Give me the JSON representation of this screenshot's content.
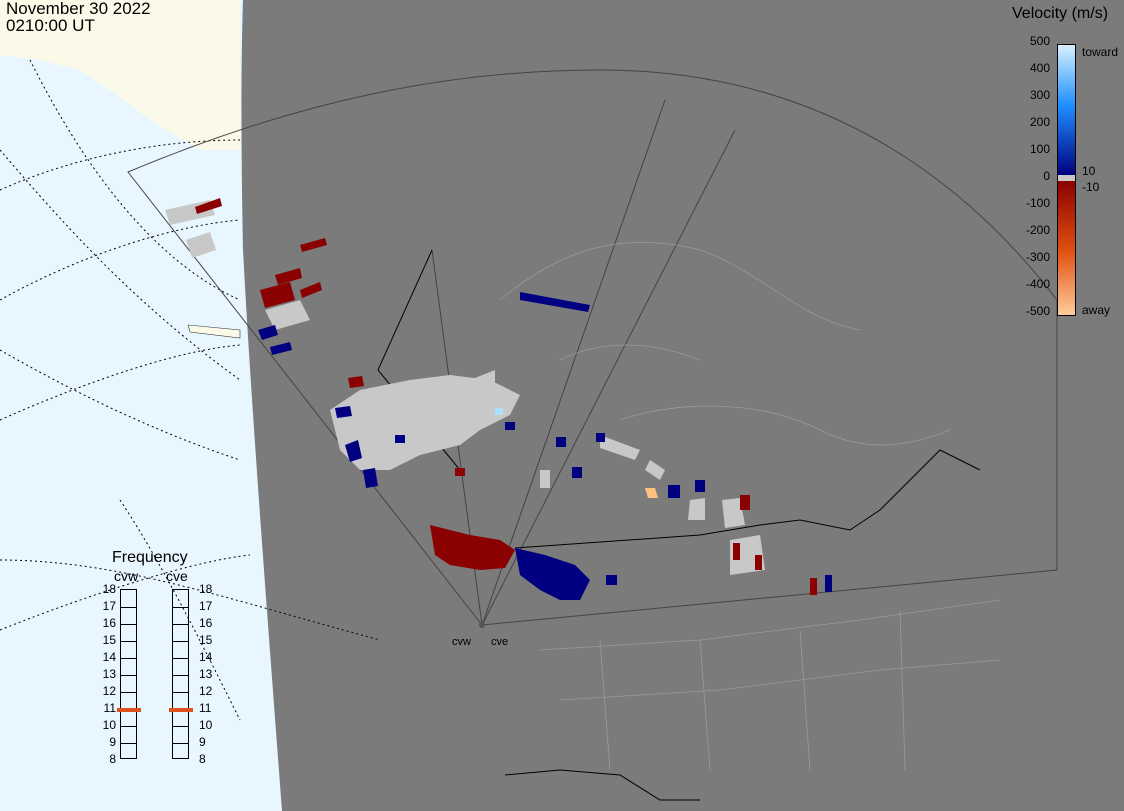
{
  "title": {
    "date": "November 30 2022",
    "time": "0210:00 UT"
  },
  "colorbar": {
    "title": "Velocity (m/s)",
    "ticks": [
      "500",
      "400",
      "300",
      "200",
      "100",
      "0",
      "-100",
      "-200",
      "-300",
      "-400",
      "-500"
    ],
    "side_labels": {
      "toward": "toward",
      "away": "away",
      "plus": "10",
      "minus": "-10"
    },
    "colors": {
      "toward_light": "#d7f0ff",
      "toward_mid": "#1e90ff",
      "toward_dark": "#000080",
      "away_dark": "#8b0000",
      "away_mid": "#e05010",
      "away_light": "#ffd0a0",
      "ground_scatter": "#c8c8c8"
    }
  },
  "frequency": {
    "title": "Frequency",
    "radars": [
      {
        "name": "cvw",
        "value_mhz": 10.9
      },
      {
        "name": "cve",
        "value_mhz": 10.9
      }
    ],
    "scale": [
      "18",
      "17",
      "16",
      "15",
      "14",
      "13",
      "12",
      "11",
      "10",
      "9",
      "8"
    ]
  },
  "map": {
    "ocean_color": "#e8f6ff",
    "land_color": "#fbf9e8",
    "night_color": "#7b7b7b",
    "sites": [
      {
        "name": "cvw"
      },
      {
        "name": "cve"
      }
    ]
  }
}
